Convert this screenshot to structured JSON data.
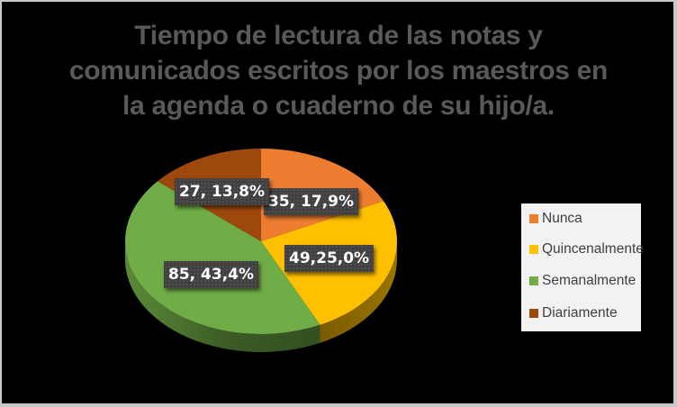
{
  "chart_data": {
    "type": "pie",
    "title": "Tiempo de lectura de las notas y comunicados escritos por los maestros en la agenda o cuaderno de su hijo/a.",
    "title_lines": [
      "Tiempo de lectura de las notas y",
      "comunicados escritos por los maestros en",
      "la agenda o cuaderno de su hijo/a."
    ],
    "categories": [
      "Nunca",
      "Quincenalmente",
      "Semanalmente",
      "Diariamente"
    ],
    "values": [
      35,
      49,
      85,
      27
    ],
    "percentages": [
      17.9,
      25.0,
      43.4,
      13.8
    ],
    "data_labels": [
      "35, 17,9%",
      "49,25,0%",
      "85, 43,4%",
      "27, 13,8%"
    ],
    "colors": [
      "#ed7d31",
      "#ffc000",
      "#70ad47",
      "#9e480e"
    ],
    "legend_position": "right",
    "style": "3d-pie"
  },
  "legend": {
    "items": [
      {
        "label": "Nunca",
        "color": "#ed7d31"
      },
      {
        "label": "Quincenalmente",
        "color": "#ffc000"
      },
      {
        "label": "Semanalmente",
        "color": "#70ad47"
      },
      {
        "label": "Diariamente",
        "color": "#9e480e"
      }
    ]
  }
}
